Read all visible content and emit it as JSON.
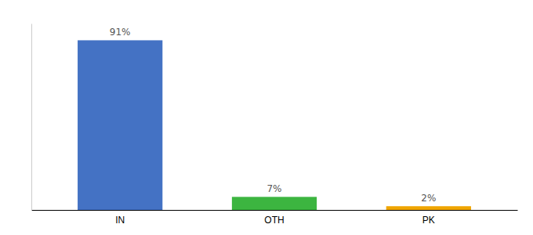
{
  "chart_data": {
    "type": "bar",
    "categories": [
      "IN",
      "OTH",
      "PK"
    ],
    "values": [
      91,
      7,
      2
    ],
    "value_labels": [
      "91%",
      "7%",
      "2%"
    ],
    "colors": [
      "#4472c4",
      "#3cb540",
      "#f0a500"
    ],
    "ylim": [
      0,
      100
    ],
    "data_labels": true,
    "tick_labels": "x"
  }
}
